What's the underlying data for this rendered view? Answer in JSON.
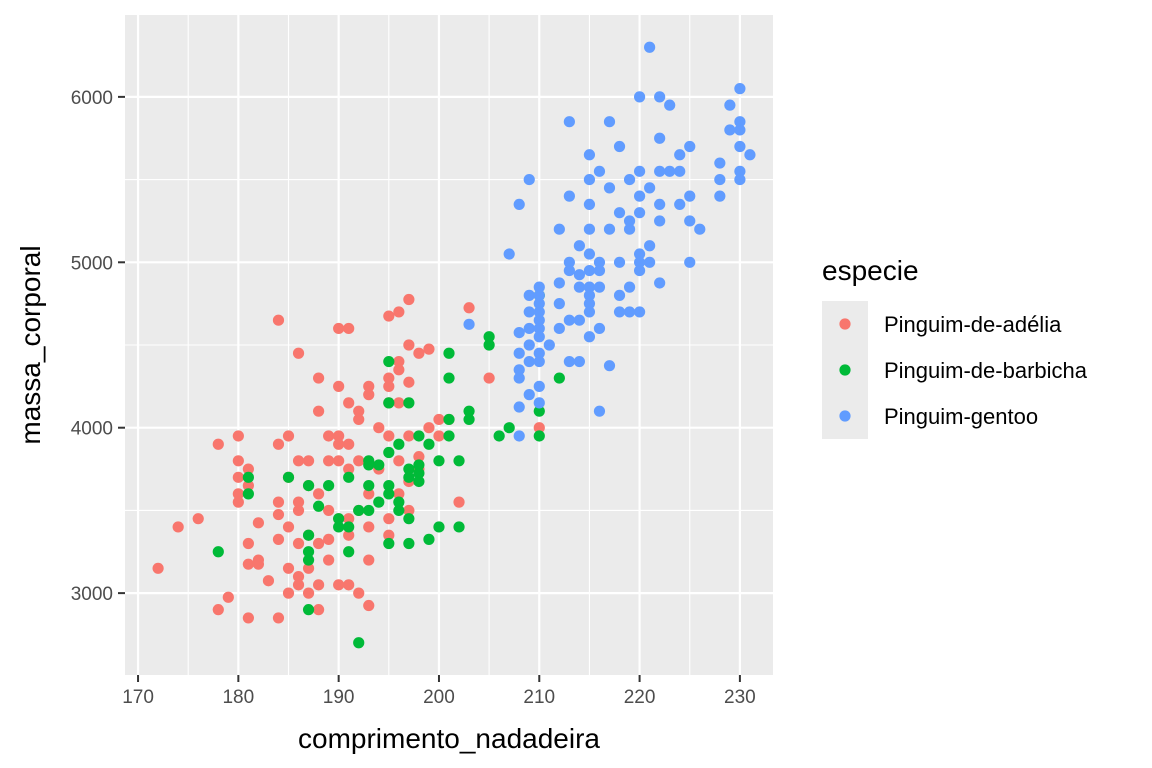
{
  "chart_data": {
    "type": "scatter",
    "xlabel": "comprimento_nadadeira",
    "ylabel": "massa_corporal",
    "xlim": [
      168.7,
      233.3
    ],
    "ylim": [
      2505,
      6495
    ],
    "x_ticks": [
      170,
      180,
      190,
      200,
      210,
      220,
      230
    ],
    "y_ticks": [
      3000,
      4000,
      5000,
      6000
    ],
    "x_minor_ticks": [
      175,
      185,
      195,
      205,
      215,
      225
    ],
    "y_minor_ticks": [
      2500,
      3500,
      4500,
      5500
    ],
    "grid": true,
    "legend": {
      "title": "especie",
      "placement": "right"
    },
    "series": [
      {
        "name": "Pinguim-de-adélia",
        "color": "#F8766D",
        "points": [
          [
            172,
            3150
          ],
          [
            174,
            3400
          ],
          [
            176,
            3450
          ],
          [
            178,
            3900
          ],
          [
            178,
            2900
          ],
          [
            179,
            2975
          ],
          [
            180,
            3950
          ],
          [
            180,
            3800
          ],
          [
            180,
            3700
          ],
          [
            180,
            3600
          ],
          [
            180,
            3550
          ],
          [
            181,
            3750
          ],
          [
            181,
            3650
          ],
          [
            181,
            3300
          ],
          [
            181,
            3175
          ],
          [
            181,
            2850
          ],
          [
            182,
            3200
          ],
          [
            182,
            3425
          ],
          [
            182,
            3175
          ],
          [
            183,
            3075
          ],
          [
            184,
            3900
          ],
          [
            184,
            3550
          ],
          [
            184,
            3325
          ],
          [
            184,
            3475
          ],
          [
            184,
            4650
          ],
          [
            184,
            2850
          ],
          [
            185,
            3950
          ],
          [
            185,
            3700
          ],
          [
            185,
            3400
          ],
          [
            185,
            3150
          ],
          [
            185,
            3000
          ],
          [
            186,
            3800
          ],
          [
            186,
            3550
          ],
          [
            186,
            3500
          ],
          [
            186,
            3300
          ],
          [
            186,
            3100
          ],
          [
            186,
            3050
          ],
          [
            186,
            4450
          ],
          [
            187,
            3800
          ],
          [
            187,
            3650
          ],
          [
            187,
            3350
          ],
          [
            187,
            3150
          ],
          [
            187,
            3000
          ],
          [
            188,
            4300
          ],
          [
            188,
            4100
          ],
          [
            188,
            3600
          ],
          [
            188,
            3300
          ],
          [
            188,
            3050
          ],
          [
            188,
            2900
          ],
          [
            189,
            3950
          ],
          [
            189,
            3800
          ],
          [
            189,
            3500
          ],
          [
            189,
            3325
          ],
          [
            189,
            3200
          ],
          [
            190,
            4600
          ],
          [
            190,
            4250
          ],
          [
            190,
            3950
          ],
          [
            190,
            3800
          ],
          [
            190,
            3450
          ],
          [
            190,
            3050
          ],
          [
            190,
            3900
          ],
          [
            191,
            4600
          ],
          [
            191,
            4150
          ],
          [
            191,
            3900
          ],
          [
            191,
            3750
          ],
          [
            191,
            3450
          ],
          [
            191,
            3350
          ],
          [
            191,
            3050
          ],
          [
            192,
            4100
          ],
          [
            192,
            4050
          ],
          [
            192,
            3800
          ],
          [
            192,
            3500
          ],
          [
            192,
            3000
          ],
          [
            193,
            4250
          ],
          [
            193,
            4200
          ],
          [
            193,
            3600
          ],
          [
            193,
            3400
          ],
          [
            193,
            3200
          ],
          [
            193,
            2925
          ],
          [
            194,
            4000
          ],
          [
            194,
            3750
          ],
          [
            195,
            4675
          ],
          [
            195,
            4300
          ],
          [
            195,
            4250
          ],
          [
            195,
            4150
          ],
          [
            195,
            3950
          ],
          [
            195,
            3450
          ],
          [
            195,
            3350
          ],
          [
            196,
            4700
          ],
          [
            196,
            4400
          ],
          [
            196,
            4350
          ],
          [
            196,
            4150
          ],
          [
            196,
            3800
          ],
          [
            196,
            3600
          ],
          [
            197,
            4775
          ],
          [
            197,
            4500
          ],
          [
            197,
            4275
          ],
          [
            197,
            3950
          ],
          [
            197,
            3675
          ],
          [
            197,
            3500
          ],
          [
            198,
            4450
          ],
          [
            198,
            3825
          ],
          [
            198,
            3750
          ],
          [
            199,
            4475
          ],
          [
            199,
            4000
          ],
          [
            200,
            4050
          ],
          [
            200,
            3950
          ],
          [
            201,
            4050
          ],
          [
            202,
            3550
          ],
          [
            203,
            4725
          ],
          [
            205,
            4300
          ],
          [
            210,
            4000
          ]
        ]
      },
      {
        "name": "Pinguim-de-barbicha",
        "color": "#00BA38",
        "points": [
          [
            178,
            3250
          ],
          [
            181,
            3700
          ],
          [
            181,
            3600
          ],
          [
            185,
            3700
          ],
          [
            187,
            3650
          ],
          [
            187,
            3350
          ],
          [
            187,
            3250
          ],
          [
            187,
            3200
          ],
          [
            187,
            2900
          ],
          [
            188,
            3525
          ],
          [
            189,
            3650
          ],
          [
            190,
            3450
          ],
          [
            190,
            3400
          ],
          [
            191,
            3700
          ],
          [
            191,
            3400
          ],
          [
            191,
            3250
          ],
          [
            192,
            3500
          ],
          [
            192,
            2700
          ],
          [
            193,
            3800
          ],
          [
            193,
            3775
          ],
          [
            193,
            3650
          ],
          [
            193,
            3500
          ],
          [
            194,
            3775
          ],
          [
            194,
            3550
          ],
          [
            195,
            4400
          ],
          [
            195,
            4150
          ],
          [
            195,
            3850
          ],
          [
            195,
            3650
          ],
          [
            195,
            3600
          ],
          [
            195,
            3300
          ],
          [
            196,
            3900
          ],
          [
            196,
            3550
          ],
          [
            196,
            3500
          ],
          [
            197,
            4150
          ],
          [
            197,
            3750
          ],
          [
            197,
            3700
          ],
          [
            197,
            3450
          ],
          [
            197,
            3300
          ],
          [
            198,
            3950
          ],
          [
            198,
            3775
          ],
          [
            198,
            3725
          ],
          [
            198,
            3675
          ],
          [
            199,
            3325
          ],
          [
            199,
            3900
          ],
          [
            200,
            3800
          ],
          [
            200,
            3400
          ],
          [
            201,
            4450
          ],
          [
            201,
            4300
          ],
          [
            201,
            4050
          ],
          [
            201,
            3950
          ],
          [
            202,
            3800
          ],
          [
            202,
            3400
          ],
          [
            203,
            4100
          ],
          [
            203,
            4050
          ],
          [
            205,
            4550
          ],
          [
            205,
            4500
          ],
          [
            206,
            3950
          ],
          [
            207,
            4000
          ],
          [
            210,
            4800
          ],
          [
            210,
            4100
          ],
          [
            210,
            3950
          ],
          [
            212,
            4300
          ]
        ]
      },
      {
        "name": "Pinguim-gentoo",
        "color": "#619CFF",
        "points": [
          [
            203,
            4625
          ],
          [
            207,
            5050
          ],
          [
            208,
            5350
          ],
          [
            208,
            4575
          ],
          [
            208,
            4450
          ],
          [
            208,
            4350
          ],
          [
            208,
            4300
          ],
          [
            208,
            4125
          ],
          [
            208,
            3950
          ],
          [
            209,
            5500
          ],
          [
            209,
            4800
          ],
          [
            209,
            4700
          ],
          [
            209,
            4600
          ],
          [
            209,
            4500
          ],
          [
            209,
            4400
          ],
          [
            209,
            4200
          ],
          [
            210,
            4850
          ],
          [
            210,
            4800
          ],
          [
            210,
            4750
          ],
          [
            210,
            4700
          ],
          [
            210,
            4650
          ],
          [
            210,
            4600
          ],
          [
            210,
            4550
          ],
          [
            210,
            4450
          ],
          [
            210,
            4400
          ],
          [
            210,
            4250
          ],
          [
            210,
            4150
          ],
          [
            211,
            4500
          ],
          [
            212,
            5200
          ],
          [
            212,
            4875
          ],
          [
            212,
            4750
          ],
          [
            212,
            4600
          ],
          [
            213,
            5850
          ],
          [
            213,
            5400
          ],
          [
            213,
            5000
          ],
          [
            213,
            4950
          ],
          [
            213,
            4650
          ],
          [
            213,
            4400
          ],
          [
            214,
            5100
          ],
          [
            214,
            4925
          ],
          [
            214,
            4850
          ],
          [
            214,
            4650
          ],
          [
            214,
            4400
          ],
          [
            215,
            5650
          ],
          [
            215,
            5500
          ],
          [
            215,
            5350
          ],
          [
            215,
            5200
          ],
          [
            215,
            5050
          ],
          [
            215,
            4950
          ],
          [
            215,
            4850
          ],
          [
            215,
            4800
          ],
          [
            215,
            4750
          ],
          [
            215,
            4700
          ],
          [
            215,
            4550
          ],
          [
            216,
            5550
          ],
          [
            216,
            5000
          ],
          [
            216,
            4950
          ],
          [
            216,
            4850
          ],
          [
            216,
            4600
          ],
          [
            216,
            4100
          ],
          [
            217,
            5850
          ],
          [
            217,
            5450
          ],
          [
            217,
            5200
          ],
          [
            217,
            4375
          ],
          [
            218,
            5700
          ],
          [
            218,
            5300
          ],
          [
            218,
            5000
          ],
          [
            218,
            4800
          ],
          [
            218,
            4700
          ],
          [
            219,
            5500
          ],
          [
            219,
            5250
          ],
          [
            219,
            5200
          ],
          [
            219,
            4850
          ],
          [
            219,
            4700
          ],
          [
            220,
            6000
          ],
          [
            220,
            5550
          ],
          [
            220,
            5400
          ],
          [
            220,
            5300
          ],
          [
            220,
            5050
          ],
          [
            220,
            5000
          ],
          [
            220,
            4950
          ],
          [
            220,
            4700
          ],
          [
            221,
            6300
          ],
          [
            221,
            5450
          ],
          [
            221,
            5100
          ],
          [
            221,
            5000
          ],
          [
            222,
            6000
          ],
          [
            222,
            5750
          ],
          [
            222,
            5550
          ],
          [
            222,
            5350
          ],
          [
            222,
            5250
          ],
          [
            222,
            4875
          ],
          [
            223,
            5950
          ],
          [
            223,
            5550
          ],
          [
            224,
            5550
          ],
          [
            224,
            5650
          ],
          [
            224,
            5350
          ],
          [
            225,
            5700
          ],
          [
            225,
            5400
          ],
          [
            225,
            5250
          ],
          [
            225,
            5000
          ],
          [
            226,
            5200
          ],
          [
            228,
            5600
          ],
          [
            228,
            5500
          ],
          [
            228,
            5400
          ],
          [
            229,
            5950
          ],
          [
            229,
            5800
          ],
          [
            230,
            6050
          ],
          [
            230,
            5850
          ],
          [
            230,
            5800
          ],
          [
            230,
            5700
          ],
          [
            230,
            5550
          ],
          [
            230,
            5500
          ],
          [
            231,
            5650
          ]
        ]
      }
    ]
  }
}
